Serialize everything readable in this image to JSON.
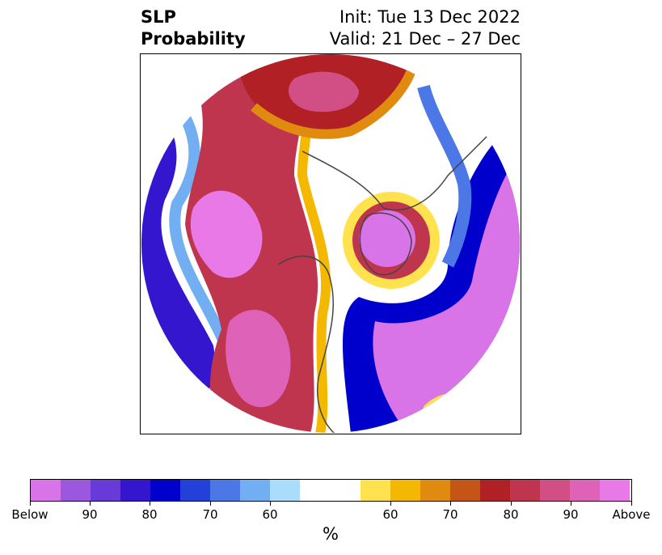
{
  "title": {
    "left_line1": "SLP",
    "left_line2": "Probability",
    "right_line1": "Init: Tue 13 Dec 2022",
    "right_line2": "Valid: 21 Dec – 27 Dec"
  },
  "colorbar": {
    "unit": "%",
    "colors": [
      "#d974e8",
      "#9b57de",
      "#6a3ad8",
      "#3416cf",
      "#0000cd",
      "#2340d8",
      "#4b78e6",
      "#72aff2",
      "#aadcfb",
      "#ffffff",
      "#ffe24d",
      "#f5b800",
      "#e08a10",
      "#c45516",
      "#b02024",
      "#c0354e",
      "#d14f84",
      "#de62b8",
      "#e879e6"
    ],
    "labels": [
      "Below",
      "90",
      "80",
      "70",
      "60",
      "60",
      "70",
      "80",
      "90",
      "Above"
    ]
  },
  "map": {
    "projection": "north-polar-stereographic",
    "legend": "bottom colorbar"
  }
}
